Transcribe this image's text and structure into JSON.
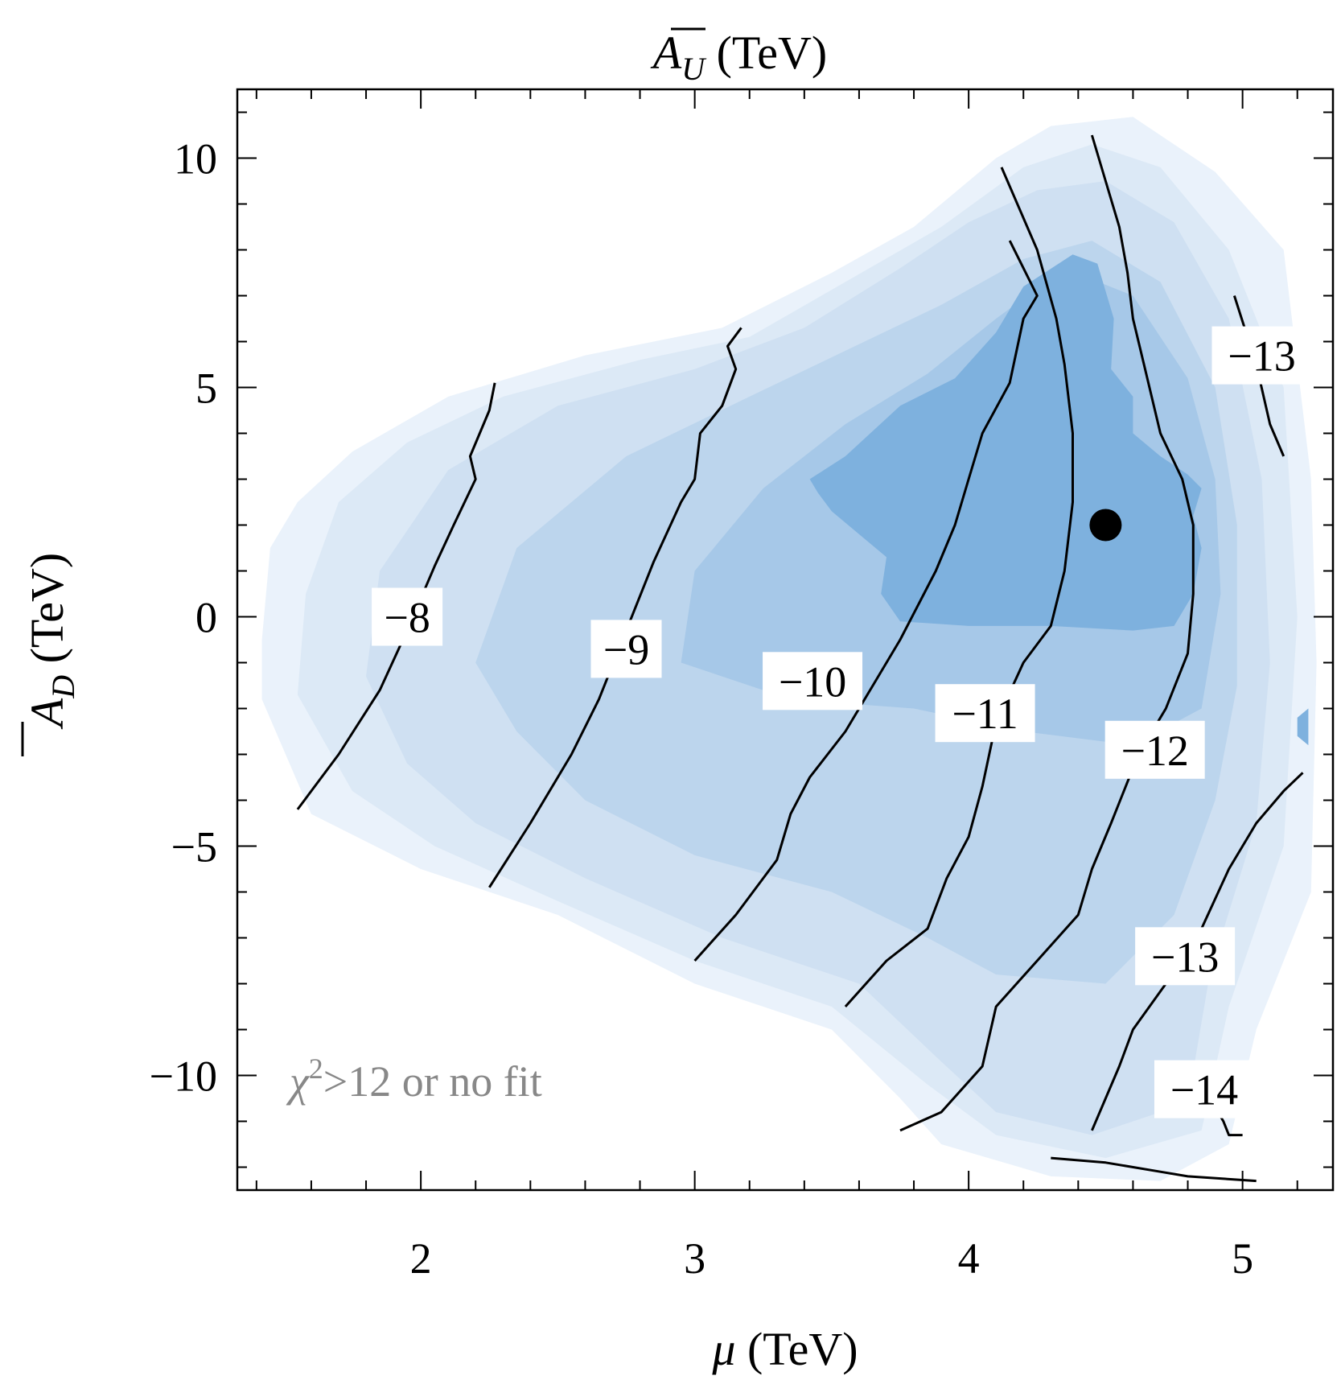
{
  "figure": {
    "top_label": "A̅U (TeV)",
    "top_label_parts": {
      "base": "A",
      "sub": "U",
      "unit": " (TeV)"
    },
    "annotation": "χ²>12 or no fit",
    "annotation_parts": {
      "chi": "χ",
      "sup": "2",
      "rest": ">12 or no fit"
    }
  },
  "chart_data": {
    "type": "contour",
    "xlabel": "μ (TeV)",
    "xlabel_parts": {
      "mu": "μ",
      "unit": " (TeV)"
    },
    "ylabel": "A̅D (TeV)",
    "ylabel_parts": {
      "base": "A",
      "sub": "D",
      "unit": " (TeV)"
    },
    "xlim": [
      1.33,
      5.33
    ],
    "ylim": [
      -12.5,
      11.5
    ],
    "x_ticks": [
      2,
      3,
      4,
      5
    ],
    "x_tick_labels": [
      "2",
      "3",
      "4",
      "5"
    ],
    "y_ticks": [
      -10,
      -5,
      0,
      5,
      10
    ],
    "y_tick_labels": [
      "−10",
      "−5",
      "0",
      "5",
      "10"
    ],
    "colors": {
      "fill_levels": [
        "#eaf2fb",
        "#dce9f6",
        "#cfe0f2",
        "#bcd5ed",
        "#a6c8e8",
        "#7eb1de"
      ],
      "contour_line": "#000000",
      "annotation": "#888888",
      "marker": "#000000"
    },
    "fill_regions": [
      {
        "level": 1,
        "points": [
          [
            1.42,
            -1.8
          ],
          [
            1.42,
            -0.5
          ],
          [
            1.45,
            1.5
          ],
          [
            1.55,
            2.5
          ],
          [
            1.75,
            3.6
          ],
          [
            2.1,
            4.8
          ],
          [
            2.6,
            5.7
          ],
          [
            3.1,
            6.3
          ],
          [
            3.5,
            7.5
          ],
          [
            3.8,
            8.5
          ],
          [
            4.1,
            10.0
          ],
          [
            4.3,
            10.7
          ],
          [
            4.6,
            10.9
          ],
          [
            4.9,
            9.7
          ],
          [
            5.15,
            8.0
          ],
          [
            5.25,
            3.0
          ],
          [
            5.27,
            -1.0
          ],
          [
            5.25,
            -6.0
          ],
          [
            5.05,
            -9.0
          ],
          [
            4.95,
            -11.5
          ],
          [
            4.7,
            -12.3
          ],
          [
            4.3,
            -12.2
          ],
          [
            3.9,
            -11.5
          ],
          [
            3.75,
            -10.5
          ],
          [
            3.5,
            -9.0
          ],
          [
            3.0,
            -8.0
          ],
          [
            2.5,
            -6.5
          ],
          [
            2.0,
            -5.5
          ],
          [
            1.6,
            -4.3
          ]
        ]
      },
      {
        "level": 2,
        "points": [
          [
            1.55,
            -1.7
          ],
          [
            1.58,
            0.5
          ],
          [
            1.7,
            2.5
          ],
          [
            1.95,
            3.8
          ],
          [
            2.3,
            4.8
          ],
          [
            2.8,
            5.6
          ],
          [
            3.2,
            6.1
          ],
          [
            3.55,
            7.3
          ],
          [
            3.9,
            8.5
          ],
          [
            4.2,
            9.8
          ],
          [
            4.45,
            10.3
          ],
          [
            4.7,
            9.8
          ],
          [
            4.95,
            8.0
          ],
          [
            5.15,
            5.0
          ],
          [
            5.2,
            0.0
          ],
          [
            5.15,
            -5.0
          ],
          [
            4.95,
            -8.5
          ],
          [
            4.85,
            -11.2
          ],
          [
            4.5,
            -11.8
          ],
          [
            4.1,
            -11.3
          ],
          [
            3.85,
            -10.2
          ],
          [
            3.5,
            -8.5
          ],
          [
            3.0,
            -7.5
          ],
          [
            2.5,
            -6.2
          ],
          [
            2.05,
            -5.0
          ],
          [
            1.75,
            -3.8
          ]
        ]
      },
      {
        "level": 3,
        "points": [
          [
            1.8,
            -1.3
          ],
          [
            1.85,
            1.0
          ],
          [
            2.1,
            3.2
          ],
          [
            2.5,
            4.6
          ],
          [
            3.0,
            5.4
          ],
          [
            3.4,
            6.3
          ],
          [
            3.75,
            7.6
          ],
          [
            4.0,
            8.6
          ],
          [
            4.25,
            9.3
          ],
          [
            4.5,
            9.5
          ],
          [
            4.75,
            8.6
          ],
          [
            4.95,
            6.5
          ],
          [
            5.07,
            3.0
          ],
          [
            5.1,
            -1.0
          ],
          [
            5.05,
            -4.5
          ],
          [
            4.88,
            -7.8
          ],
          [
            4.8,
            -10.6
          ],
          [
            4.45,
            -11.3
          ],
          [
            4.1,
            -10.8
          ],
          [
            3.9,
            -9.7
          ],
          [
            3.6,
            -8.0
          ],
          [
            3.1,
            -7.0
          ],
          [
            2.6,
            -5.7
          ],
          [
            2.2,
            -4.5
          ],
          [
            1.95,
            -3.2
          ]
        ]
      },
      {
        "level": 4,
        "points": [
          [
            2.2,
            -1.0
          ],
          [
            2.35,
            1.5
          ],
          [
            2.75,
            3.5
          ],
          [
            3.2,
            4.8
          ],
          [
            3.55,
            5.8
          ],
          [
            3.9,
            6.8
          ],
          [
            4.2,
            7.8
          ],
          [
            4.45,
            8.2
          ],
          [
            4.7,
            7.3
          ],
          [
            4.9,
            5.0
          ],
          [
            4.98,
            2.0
          ],
          [
            4.98,
            -1.5
          ],
          [
            4.9,
            -4.0
          ],
          [
            4.75,
            -6.5
          ],
          [
            4.5,
            -8.0
          ],
          [
            4.1,
            -7.8
          ],
          [
            3.85,
            -7.0
          ],
          [
            3.5,
            -6.0
          ],
          [
            3.0,
            -5.2
          ],
          [
            2.6,
            -4.0
          ],
          [
            2.35,
            -2.5
          ]
        ]
      },
      {
        "level": 5,
        "points": [
          [
            2.95,
            -1.0
          ],
          [
            3.0,
            1.0
          ],
          [
            3.25,
            2.8
          ],
          [
            3.55,
            4.2
          ],
          [
            3.85,
            5.3
          ],
          [
            4.1,
            6.5
          ],
          [
            4.35,
            7.6
          ],
          [
            4.6,
            7.0
          ],
          [
            4.8,
            5.2
          ],
          [
            4.9,
            3.0
          ],
          [
            4.92,
            0.5
          ],
          [
            4.85,
            -2.0
          ],
          [
            4.6,
            -2.8
          ],
          [
            4.2,
            -2.5
          ],
          [
            3.8,
            -2.0
          ],
          [
            3.35,
            -1.8
          ]
        ]
      },
      {
        "level": 6,
        "points": [
          [
            3.42,
            3.0
          ],
          [
            3.55,
            3.5
          ],
          [
            3.75,
            4.6
          ],
          [
            3.95,
            5.2
          ],
          [
            4.1,
            6.2
          ],
          [
            4.2,
            7.2
          ],
          [
            4.38,
            7.9
          ],
          [
            4.47,
            7.7
          ],
          [
            4.53,
            6.5
          ],
          [
            4.52,
            5.4
          ],
          [
            4.6,
            4.8
          ],
          [
            4.6,
            4.0
          ],
          [
            4.7,
            3.5
          ],
          [
            4.8,
            3.1
          ],
          [
            4.85,
            2.8
          ],
          [
            4.82,
            2.2
          ],
          [
            4.85,
            1.5
          ],
          [
            4.82,
            0.5
          ],
          [
            4.75,
            -0.2
          ],
          [
            4.6,
            -0.3
          ],
          [
            4.3,
            -0.2
          ],
          [
            4.0,
            -0.2
          ],
          [
            3.75,
            -0.1
          ],
          [
            3.68,
            0.5
          ],
          [
            3.7,
            1.3
          ],
          [
            3.6,
            1.8
          ],
          [
            3.5,
            2.3
          ],
          [
            3.45,
            2.7
          ]
        ]
      },
      {
        "level": 6,
        "points": [
          [
            5.2,
            -2.2
          ],
          [
            5.24,
            -2.0
          ],
          [
            5.24,
            -2.8
          ],
          [
            5.2,
            -2.6
          ]
        ]
      }
    ],
    "contour_lines": [
      {
        "level": -8,
        "points": [
          [
            1.55,
            -4.2
          ],
          [
            1.7,
            -3.0
          ],
          [
            1.85,
            -1.6
          ],
          [
            1.95,
            -0.3
          ],
          [
            2.05,
            1.1
          ],
          [
            2.12,
            2.0
          ],
          [
            2.2,
            3.0
          ],
          [
            2.18,
            3.5
          ],
          [
            2.25,
            4.5
          ],
          [
            2.27,
            5.1
          ]
        ]
      },
      {
        "level": -9,
        "points": [
          [
            2.25,
            -5.9
          ],
          [
            2.4,
            -4.5
          ],
          [
            2.55,
            -3.0
          ],
          [
            2.65,
            -1.8
          ],
          [
            2.75,
            -0.3
          ],
          [
            2.85,
            1.2
          ],
          [
            2.95,
            2.5
          ],
          [
            3.0,
            3.0
          ],
          [
            3.02,
            4.0
          ],
          [
            3.1,
            4.6
          ],
          [
            3.15,
            5.4
          ],
          [
            3.12,
            5.9
          ],
          [
            3.17,
            6.3
          ]
        ]
      },
      {
        "level": -10,
        "points": [
          [
            3.0,
            -7.5
          ],
          [
            3.15,
            -6.5
          ],
          [
            3.3,
            -5.3
          ],
          [
            3.35,
            -4.3
          ],
          [
            3.42,
            -3.5
          ],
          [
            3.55,
            -2.5
          ],
          [
            3.65,
            -1.5
          ],
          [
            3.75,
            -0.5
          ],
          [
            3.88,
            1.0
          ],
          [
            3.95,
            2.0
          ],
          [
            4.0,
            3.0
          ],
          [
            4.05,
            4.0
          ],
          [
            4.15,
            5.1
          ],
          [
            4.2,
            6.5
          ],
          [
            4.25,
            7.0
          ],
          [
            4.15,
            8.2
          ]
        ]
      },
      {
        "level": -11,
        "points": [
          [
            3.55,
            -8.5
          ],
          [
            3.7,
            -7.5
          ],
          [
            3.85,
            -6.8
          ],
          [
            3.92,
            -5.7
          ],
          [
            4.0,
            -4.8
          ],
          [
            4.05,
            -3.7
          ],
          [
            4.1,
            -2.3
          ],
          [
            4.2,
            -1.0
          ],
          [
            4.3,
            -0.2
          ],
          [
            4.35,
            1.0
          ],
          [
            4.38,
            2.5
          ],
          [
            4.38,
            4.0
          ],
          [
            4.35,
            5.5
          ],
          [
            4.32,
            6.5
          ],
          [
            4.25,
            8.0
          ],
          [
            4.12,
            9.8
          ]
        ]
      },
      {
        "level": -12,
        "points": [
          [
            3.75,
            -11.2
          ],
          [
            3.9,
            -10.8
          ],
          [
            4.05,
            -9.8
          ],
          [
            4.1,
            -8.5
          ],
          [
            4.25,
            -7.5
          ],
          [
            4.4,
            -6.5
          ],
          [
            4.45,
            -5.5
          ],
          [
            4.52,
            -4.5
          ],
          [
            4.62,
            -3.0
          ],
          [
            4.72,
            -2.0
          ],
          [
            4.8,
            -0.8
          ],
          [
            4.82,
            0.5
          ],
          [
            4.82,
            2.0
          ],
          [
            4.78,
            3.0
          ],
          [
            4.7,
            4.0
          ],
          [
            4.64,
            5.5
          ],
          [
            4.6,
            6.5
          ],
          [
            4.58,
            7.5
          ],
          [
            4.55,
            8.5
          ],
          [
            4.5,
            9.5
          ],
          [
            4.45,
            10.5
          ]
        ]
      },
      {
        "level": -13,
        "points": [
          [
            4.45,
            -11.2
          ],
          [
            4.5,
            -10.5
          ],
          [
            4.55,
            -9.8
          ],
          [
            4.6,
            -9.0
          ],
          [
            4.72,
            -8.0
          ],
          [
            4.85,
            -6.8
          ],
          [
            4.95,
            -5.5
          ],
          [
            5.05,
            -4.5
          ],
          [
            5.15,
            -3.8
          ],
          [
            5.22,
            -3.4
          ]
        ]
      },
      {
        "level": -13,
        "points": [
          [
            4.97,
            7.0
          ],
          [
            5.05,
            5.5
          ],
          [
            5.1,
            4.2
          ],
          [
            5.15,
            3.5
          ]
        ]
      },
      {
        "level": -14,
        "points": [
          [
            4.3,
            -11.8
          ],
          [
            4.5,
            -11.9
          ],
          [
            4.7,
            -12.1
          ],
          [
            4.8,
            -12.2
          ],
          [
            5.05,
            -12.3
          ]
        ]
      },
      {
        "level": -14,
        "points": [
          [
            4.9,
            -10.7
          ],
          [
            4.93,
            -11.0
          ],
          [
            4.95,
            -11.3
          ],
          [
            5.0,
            -11.3
          ]
        ]
      }
    ],
    "contour_labels": [
      {
        "text": "−8",
        "x": 1.95,
        "y": 0.0
      },
      {
        "text": "−9",
        "x": 2.75,
        "y": -0.7
      },
      {
        "text": "−10",
        "x": 3.43,
        "y": -1.4
      },
      {
        "text": "−11",
        "x": 4.06,
        "y": -2.1
      },
      {
        "text": "−12",
        "x": 4.68,
        "y": -2.9
      },
      {
        "text": "−13",
        "x": 5.07,
        "y": 5.7
      },
      {
        "text": "−13",
        "x": 4.79,
        "y": -7.4
      },
      {
        "text": "−14",
        "x": 4.86,
        "y": -10.3
      }
    ],
    "marker": {
      "x": 4.5,
      "y": 2.0
    }
  }
}
